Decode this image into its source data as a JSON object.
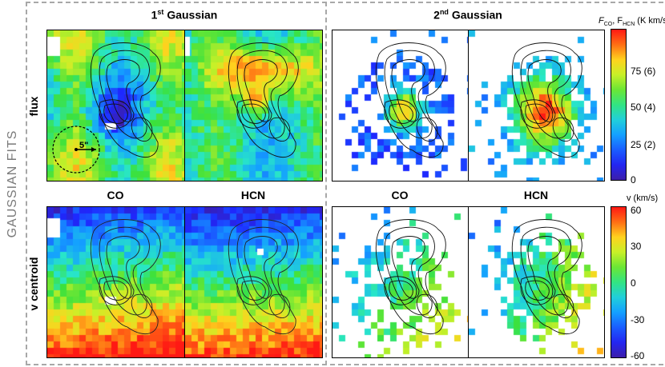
{
  "figure": {
    "side_label": "GAUSSIAN FITS",
    "first_gaussian_title": "1",
    "first_gaussian_sup": "st",
    "first_gaussian_rest": " Gaussian",
    "second_gaussian_title": "2",
    "second_gaussian_sup": "nd",
    "second_gaussian_rest": " Gaussian",
    "row_flux_label": "flux",
    "row_velocity_label": "v centroid",
    "col_labels": [
      "CO",
      "HCN",
      "CO",
      "HCN"
    ],
    "beam_label": "5\""
  },
  "colorbars": {
    "flux": {
      "title_prefix": "F",
      "title_sub1": "CO",
      "title_mid": ", F",
      "title_sub2": "HCN",
      "title_unit": " (K km/s)",
      "ticks": [
        "75 (6)",
        "50 (4)",
        "25 (2)",
        "0"
      ]
    },
    "velocity": {
      "title": "v (km/s)",
      "ticks": [
        "60",
        "30",
        "0",
        "-30",
        "-60"
      ]
    }
  },
  "colors": {
    "jet_low": "#1a1aff",
    "jet_mid": "#33e033",
    "jet_high": "#ff2a00",
    "divider": "#a8a8a8",
    "side_label": "#7a7a7a"
  }
}
